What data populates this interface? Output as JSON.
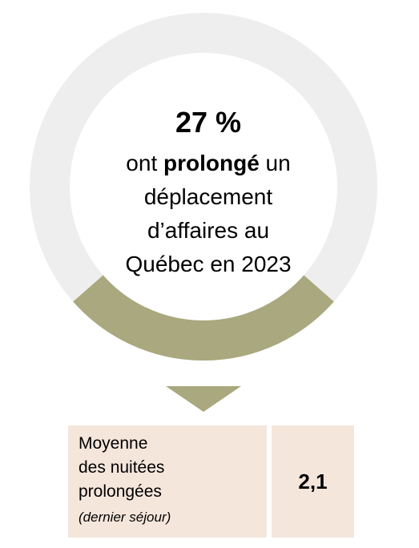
{
  "chart_data": {
    "type": "pie",
    "value": 27,
    "value_label": "27 %",
    "remainder": 73,
    "colors": {
      "highlight": "#a9a87e",
      "remainder": "#eeeeee"
    }
  },
  "headline": {
    "line1_pre": "ont ",
    "line1_bold": "prolongé",
    "line1_post": " un",
    "line2": "déplacement",
    "line3": "d’affaires au",
    "line4": "Québec en 2023"
  },
  "stat": {
    "label_line1": "Moyenne",
    "label_line2": "des nuitées",
    "label_line3": "prolongées",
    "label_note": "(dernier séjour)",
    "value": "2,1"
  }
}
